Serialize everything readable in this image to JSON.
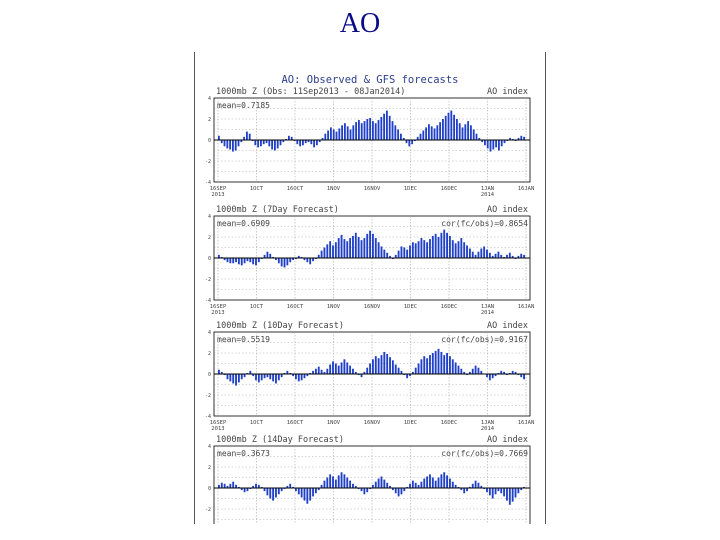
{
  "slide": {
    "title": "AO"
  },
  "figure": {
    "title": "AO: Observed & GFS forecasts"
  },
  "colors": {
    "bar": "#2040c8",
    "axis": "#000000",
    "grid": "#999999",
    "text": "#444444"
  },
  "x_ticks": [
    {
      "top": "16SEP",
      "bottom": "2013"
    },
    {
      "top": "1OCT",
      "bottom": ""
    },
    {
      "top": "16OCT",
      "bottom": ""
    },
    {
      "top": "1NOV",
      "bottom": ""
    },
    {
      "top": "16NOV",
      "bottom": ""
    },
    {
      "top": "1DEC",
      "bottom": ""
    },
    {
      "top": "16DEC",
      "bottom": ""
    },
    {
      "top": "1JAN",
      "bottom": "2014"
    },
    {
      "top": "16JAN",
      "bottom": ""
    }
  ],
  "chart_data": [
    {
      "type": "bar",
      "title": "1000mb Z (Obs: 11Sep2013 - 08Jan2014)",
      "right_label": "AO index",
      "stat": "mean=0.7185",
      "ylim": [
        -4,
        4
      ],
      "values": [
        0.4,
        -0.3,
        -0.6,
        -0.8,
        -0.9,
        -1.1,
        -1.0,
        -0.6,
        -0.2,
        0.3,
        0.8,
        0.6,
        -0.1,
        -0.5,
        -0.7,
        -0.6,
        -0.4,
        -0.3,
        -0.6,
        -0.9,
        -1.0,
        -0.8,
        -0.5,
        -0.2,
        0.1,
        0.4,
        0.3,
        -0.1,
        -0.4,
        -0.6,
        -0.5,
        -0.3,
        -0.2,
        -0.4,
        -0.7,
        -0.5,
        -0.2,
        0.2,
        0.6,
        0.9,
        1.2,
        1.0,
        0.8,
        1.1,
        1.4,
        1.6,
        1.3,
        1.0,
        1.4,
        1.7,
        1.9,
        1.6,
        1.8,
        2.0,
        2.1,
        1.8,
        1.6,
        1.9,
        2.2,
        2.5,
        2.8,
        2.3,
        1.8,
        1.4,
        1.0,
        0.6,
        0.2,
        -0.3,
        -0.6,
        -0.4,
        -0.1,
        0.3,
        0.6,
        0.9,
        1.2,
        1.5,
        1.3,
        1.1,
        1.4,
        1.7,
        2.0,
        2.3,
        2.6,
        2.8,
        2.4,
        2.0,
        1.6,
        1.2,
        1.5,
        1.8,
        1.4,
        1.0,
        0.6,
        0.2,
        -0.2,
        -0.5,
        -0.8,
        -1.1,
        -0.9,
        -0.7,
        -1.0,
        -0.6,
        -0.3,
        -0.1,
        0.2,
        0.1,
        -0.1,
        0.2,
        0.4,
        0.3
      ]
    },
    {
      "type": "bar",
      "title": "1000mb Z (7Day Forecast)",
      "right_label": "AO index",
      "stat": "mean=0.6909",
      "stat_right": "cor(fc/obs)=0.8654",
      "ylim": [
        -4,
        4
      ],
      "values": [
        0.3,
        0.1,
        -0.2,
        -0.4,
        -0.5,
        -0.5,
        -0.4,
        -0.6,
        -0.7,
        -0.5,
        -0.3,
        -0.4,
        -0.6,
        -0.7,
        -0.4,
        -0.1,
        0.3,
        0.6,
        0.4,
        0.1,
        -0.2,
        -0.5,
        -0.8,
        -0.9,
        -0.7,
        -0.4,
        -0.2,
        -0.1,
        0.2,
        0.1,
        -0.2,
        -0.4,
        -0.6,
        -0.3,
        -0.1,
        0.3,
        0.7,
        1.0,
        1.3,
        1.6,
        1.2,
        1.5,
        1.9,
        2.2,
        1.8,
        1.6,
        1.9,
        2.1,
        2.4,
        2.0,
        1.7,
        1.9,
        2.3,
        2.6,
        2.3,
        1.9,
        1.5,
        1.1,
        0.8,
        0.5,
        0.2,
        -0.1,
        0.3,
        0.7,
        1.1,
        1.0,
        0.8,
        1.2,
        1.5,
        1.4,
        1.6,
        1.9,
        1.7,
        1.5,
        1.8,
        2.1,
        2.3,
        2.0,
        2.4,
        2.7,
        2.4,
        2.1,
        1.7,
        1.4,
        1.6,
        1.9,
        1.5,
        1.2,
        0.9,
        0.6,
        0.3,
        0.6,
        0.9,
        1.1,
        0.8,
        0.5,
        0.2,
        0.4,
        0.6,
        0.3,
        0.1,
        0.3,
        0.5,
        0.2,
        -0.1,
        0.2,
        0.4,
        0.3
      ]
    },
    {
      "type": "bar",
      "title": "1000mb Z (10Day Forecast)",
      "right_label": "AO index",
      "stat": "mean=0.5519",
      "stat_right": "cor(fc/obs)=0.9167",
      "ylim": [
        -4,
        4
      ],
      "values": [
        0.4,
        0.2,
        -0.1,
        -0.5,
        -0.7,
        -0.9,
        -1.1,
        -0.8,
        -0.5,
        -0.3,
        0.1,
        0.3,
        -0.2,
        -0.6,
        -0.8,
        -0.6,
        -0.4,
        -0.3,
        -0.5,
        -0.7,
        -0.9,
        -0.6,
        -0.3,
        0.1,
        0.3,
        0.1,
        -0.2,
        -0.5,
        -0.7,
        -0.6,
        -0.4,
        -0.2,
        0.1,
        0.3,
        0.5,
        0.7,
        0.4,
        0.2,
        0.5,
        0.9,
        1.2,
        1.0,
        0.8,
        1.1,
        1.4,
        1.1,
        0.8,
        0.5,
        0.2,
        -0.1,
        -0.3,
        0.2,
        0.6,
        1.0,
        1.4,
        1.7,
        1.5,
        1.8,
        2.1,
        1.9,
        1.6,
        1.3,
        0.9,
        0.6,
        0.3,
        -0.1,
        -0.4,
        -0.2,
        0.2,
        0.6,
        1.0,
        1.4,
        1.7,
        1.5,
        1.8,
        2.0,
        2.2,
        2.4,
        2.1,
        1.8,
        2.0,
        1.7,
        1.4,
        1.1,
        0.8,
        0.5,
        0.2,
        -0.1,
        0.2,
        0.5,
        0.8,
        0.6,
        0.3,
        0.0,
        -0.3,
        -0.6,
        -0.4,
        -0.2,
        0.1,
        0.3,
        0.2,
        -0.1,
        0.1,
        0.3,
        0.2,
        -0.1,
        -0.3,
        -0.5
      ]
    },
    {
      "type": "bar",
      "title": "1000mb Z (14Day Forecast)",
      "right_label": "AO index",
      "stat": "mean=0.3673",
      "stat_right": "cor(fc/obs)=0.7669",
      "ylim": [
        -4,
        4
      ],
      "values": [
        0.3,
        0.5,
        0.4,
        0.2,
        0.4,
        0.6,
        0.3,
        0.1,
        -0.2,
        -0.4,
        -0.3,
        -0.1,
        0.2,
        0.4,
        0.3,
        0.1,
        -0.3,
        -0.7,
        -1.0,
        -1.2,
        -0.9,
        -0.6,
        -0.3,
        -0.1,
        0.2,
        0.4,
        0.1,
        -0.3,
        -0.6,
        -0.9,
        -1.2,
        -1.5,
        -1.2,
        -0.8,
        -0.5,
        -0.2,
        0.3,
        0.7,
        1.0,
        1.3,
        1.1,
        0.8,
        1.2,
        1.5,
        1.3,
        1.0,
        0.7,
        0.4,
        0.2,
        -0.1,
        -0.3,
        -0.6,
        -0.4,
        -0.1,
        0.3,
        0.6,
        0.9,
        1.1,
        0.8,
        0.5,
        0.2,
        -0.2,
        -0.5,
        -0.8,
        -0.6,
        -0.3,
        0.1,
        0.4,
        0.7,
        0.5,
        0.3,
        0.6,
        0.9,
        1.1,
        1.3,
        1.0,
        0.7,
        1.0,
        1.3,
        1.5,
        1.2,
        0.9,
        0.6,
        0.3,
        0.1,
        -0.2,
        -0.5,
        -0.3,
        0.1,
        0.4,
        0.7,
        0.5,
        0.2,
        -0.1,
        -0.4,
        -0.7,
        -1.0,
        -0.6,
        -0.3,
        -0.5,
        -0.8,
        -1.2,
        -1.6,
        -1.3,
        -0.9,
        -0.5,
        -0.2,
        0.1
      ]
    }
  ]
}
